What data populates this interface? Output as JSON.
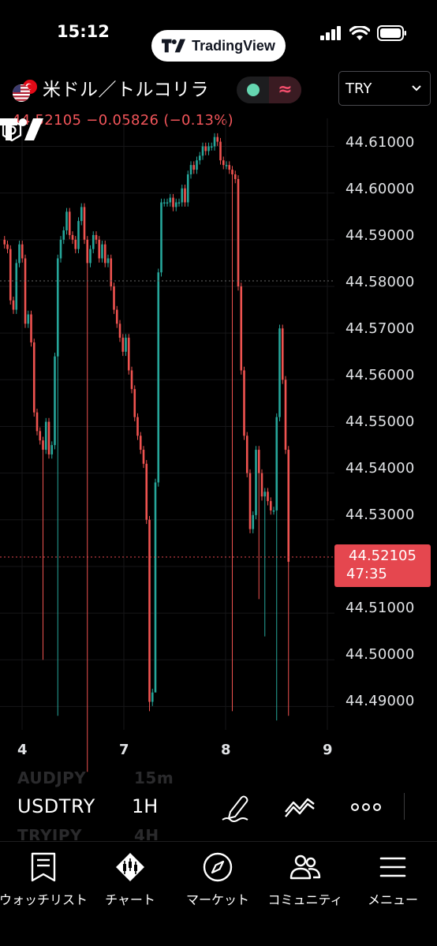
{
  "status_bar": {
    "time": "15:12",
    "app_name": "TradingView"
  },
  "symbol": {
    "name": "米ドル／トルコリラ",
    "price_change": "44.52105 −0.05826 (−0.13%)",
    "market_status_icon": "market-open-dot",
    "data_icon": "≈",
    "currency": "TRY"
  },
  "chart": {
    "price_axis": [
      "44.61000",
      "44.60000",
      "44.59000",
      "44.58000",
      "44.57000",
      "44.56000",
      "44.55000",
      "44.54000",
      "44.53000",
      "44.52000",
      "44.51000",
      "44.50000",
      "44.49000"
    ],
    "time_axis": [
      "4",
      "7",
      "8",
      "9"
    ],
    "last_price": "44.52105",
    "countdown": "47:35",
    "colors": {
      "up": "#26a69a",
      "down": "#ef5350",
      "background": "#000000"
    }
  },
  "chart_data": {
    "type": "candlestick",
    "title": "",
    "interval": "1H",
    "ylim": [
      44.485,
      44.616
    ],
    "x": [
      "4",
      "7",
      "8",
      "9"
    ],
    "last_price": 44.52105,
    "price_levels": [
      44.61,
      44.6,
      44.59,
      44.58,
      44.57,
      44.56,
      44.55,
      44.54,
      44.53,
      44.52,
      44.51,
      44.5,
      44.49
    ]
  },
  "toolbar": {
    "symbol": "USDTRY",
    "interval": "1H",
    "ghost_above_symbol": "AUDJPY",
    "ghost_above_interval": "15m",
    "ghost_below_symbol": "TRYJPY",
    "ghost_below_interval": "4H"
  },
  "nav": {
    "items": [
      {
        "label": "ウォッチリスト",
        "icon": "watchlist-icon"
      },
      {
        "label": "チャート",
        "icon": "chart-icon"
      },
      {
        "label": "マーケット",
        "icon": "compass-icon"
      },
      {
        "label": "コミュニティ",
        "icon": "community-icon"
      },
      {
        "label": "メニュー",
        "icon": "menu-icon"
      }
    ]
  }
}
